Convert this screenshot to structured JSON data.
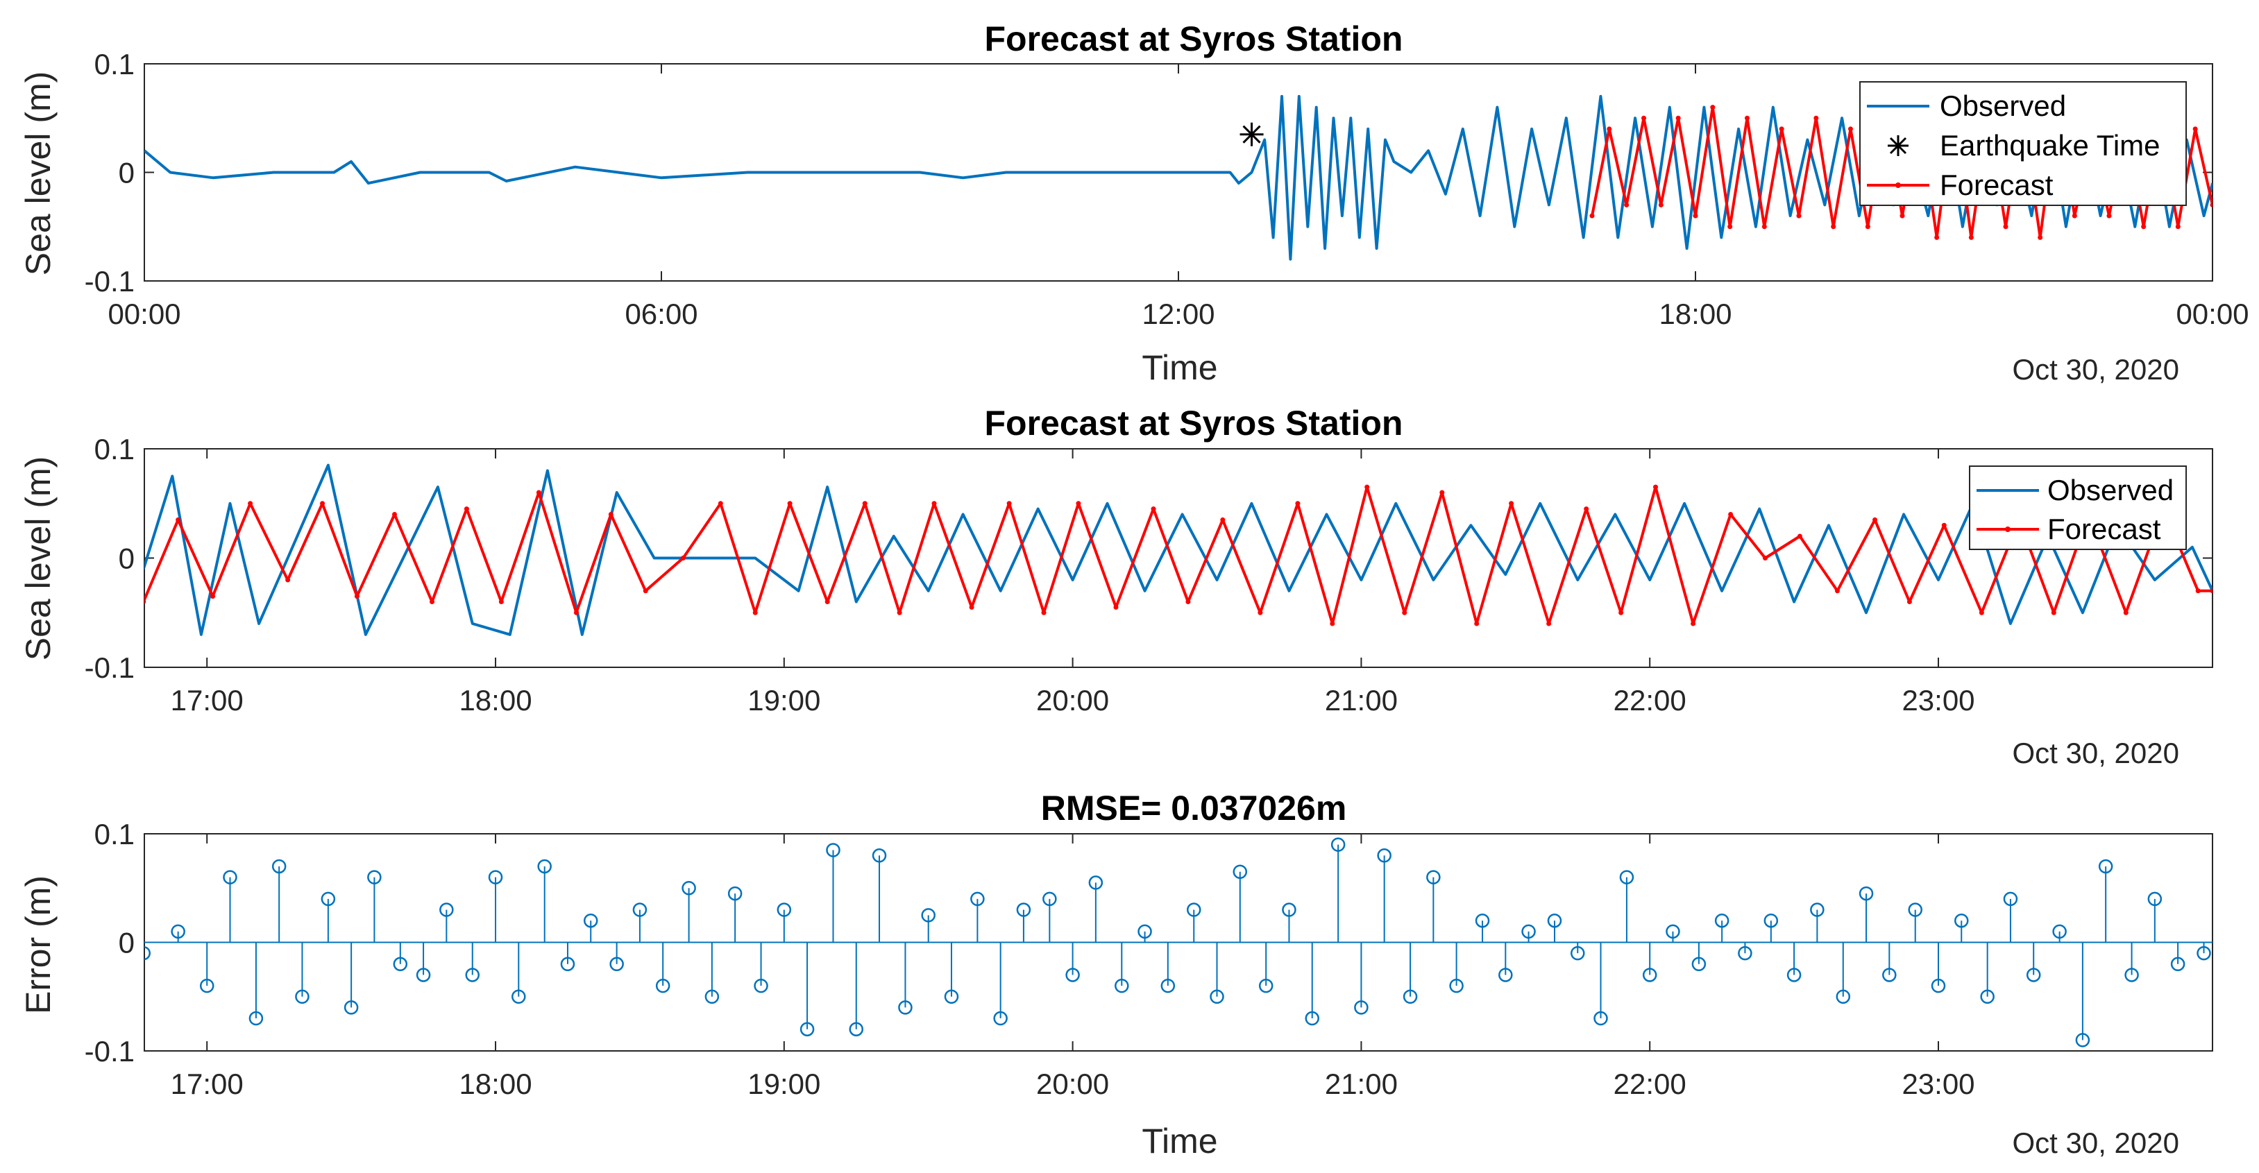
{
  "colors": {
    "observed": "#0072BD",
    "forecast": "#FF0000",
    "marker": "#000000",
    "axis": "#262626"
  },
  "chart_data": [
    {
      "id": "overview",
      "type": "line",
      "title": "Forecast at Syros Station",
      "xlabel": "Time",
      "ylabel": "Sea level (m)",
      "date_label": "Oct 30, 2020",
      "x_unit": "hours since 00:00",
      "xlim": [
        0,
        24
      ],
      "ylim": [
        -0.1,
        0.1
      ],
      "xticks": [
        {
          "value": 0,
          "label": "00:00"
        },
        {
          "value": 6,
          "label": "06:00"
        },
        {
          "value": 12,
          "label": "12:00"
        },
        {
          "value": 18,
          "label": "18:00"
        },
        {
          "value": 24,
          "label": "00:00"
        }
      ],
      "yticks": [
        {
          "value": 0.1,
          "label": "0.1"
        },
        {
          "value": 0,
          "label": "0"
        },
        {
          "value": -0.1,
          "label": "-0.1"
        }
      ],
      "legend": {
        "position": "top-right",
        "entries": [
          "Observed",
          "Earthquake Time",
          "Forecast"
        ]
      },
      "earthquake": {
        "label": "Earthquake Time",
        "x": 12.85,
        "y": 0.035
      },
      "series": [
        {
          "name": "Observed",
          "x": [
            0,
            0.3,
            0.8,
            1.5,
            2.2,
            2.4,
            2.6,
            3.2,
            4,
            4.2,
            5,
            5.5,
            6,
            7,
            8,
            9,
            9.5,
            10,
            11,
            12,
            12.6,
            12.7,
            12.85,
            13.0,
            13.1,
            13.2,
            13.3,
            13.4,
            13.5,
            13.6,
            13.7,
            13.8,
            13.9,
            14.0,
            14.1,
            14.2,
            14.3,
            14.4,
            14.5,
            14.7,
            14.9,
            15.1,
            15.3,
            15.5,
            15.7,
            15.9,
            16.1,
            16.3,
            16.5,
            16.7,
            16.9,
            17.1,
            17.3,
            17.5,
            17.7,
            17.9,
            18.1,
            18.3,
            18.5,
            18.7,
            18.9,
            19.1,
            19.3,
            19.5,
            19.7,
            19.9,
            20.1,
            20.3,
            20.5,
            20.7,
            20.9,
            21.1,
            21.3,
            21.5,
            21.7,
            21.9,
            22.1,
            22.3,
            22.5,
            22.7,
            22.9,
            23.1,
            23.3,
            23.5,
            23.7,
            23.9,
            24
          ],
          "y": [
            0.02,
            0.0,
            -0.005,
            0.0,
            0.0,
            0.01,
            -0.01,
            0.0,
            0.0,
            -0.008,
            0.005,
            0.0,
            -0.005,
            0.0,
            0.0,
            0.0,
            -0.005,
            0.0,
            0.0,
            0.0,
            0.0,
            -0.01,
            0.0,
            0.03,
            -0.06,
            0.07,
            -0.08,
            0.07,
            -0.05,
            0.06,
            -0.07,
            0.05,
            -0.04,
            0.05,
            -0.06,
            0.04,
            -0.07,
            0.03,
            0.01,
            0.0,
            0.02,
            -0.02,
            0.04,
            -0.04,
            0.06,
            -0.05,
            0.04,
            -0.03,
            0.05,
            -0.06,
            0.07,
            -0.06,
            0.05,
            -0.05,
            0.06,
            -0.07,
            0.06,
            -0.06,
            0.04,
            -0.05,
            0.06,
            -0.04,
            0.03,
            -0.03,
            0.05,
            -0.04,
            0.04,
            -0.03,
            0.02,
            -0.04,
            0.05,
            -0.05,
            0.04,
            -0.03,
            0.03,
            -0.04,
            0.05,
            -0.05,
            0.04,
            -0.04,
            0.03,
            -0.05,
            0.04,
            -0.05,
            0.03,
            -0.04,
            -0.01
          ]
        },
        {
          "name": "Forecast",
          "x": [
            16.8,
            17.0,
            17.2,
            17.4,
            17.6,
            17.8,
            18.0,
            18.2,
            18.4,
            18.6,
            18.8,
            19.0,
            19.2,
            19.4,
            19.6,
            19.8,
            20.0,
            20.2,
            20.4,
            20.6,
            20.8,
            21.0,
            21.2,
            21.4,
            21.6,
            21.8,
            22.0,
            22.2,
            22.4,
            22.6,
            22.8,
            23.0,
            23.2,
            23.4,
            23.6,
            23.8,
            24.0
          ],
          "y": [
            -0.04,
            0.04,
            -0.03,
            0.05,
            -0.03,
            0.05,
            -0.04,
            0.06,
            -0.05,
            0.05,
            -0.05,
            0.04,
            -0.04,
            0.05,
            -0.05,
            0.04,
            -0.05,
            0.05,
            -0.04,
            0.05,
            -0.06,
            0.06,
            -0.06,
            0.05,
            -0.05,
            0.05,
            -0.06,
            0.06,
            -0.04,
            0.03,
            -0.04,
            0.04,
            -0.05,
            0.04,
            -0.05,
            0.04,
            -0.03
          ]
        }
      ]
    },
    {
      "id": "zoom",
      "type": "line",
      "title": "Forecast at Syros Station",
      "xlabel": "",
      "ylabel": "Sea level (m)",
      "date_label": "Oct 30, 2020",
      "x_unit": "hours since 00:00",
      "xlim": [
        16.783,
        23.95
      ],
      "ylim": [
        -0.1,
        0.1
      ],
      "xticks": [
        {
          "value": 17,
          "label": "17:00"
        },
        {
          "value": 18,
          "label": "18:00"
        },
        {
          "value": 19,
          "label": "19:00"
        },
        {
          "value": 20,
          "label": "20:00"
        },
        {
          "value": 21,
          "label": "21:00"
        },
        {
          "value": 22,
          "label": "22:00"
        },
        {
          "value": 23,
          "label": "23:00"
        }
      ],
      "yticks": [
        {
          "value": 0.1,
          "label": "0.1"
        },
        {
          "value": 0,
          "label": "0"
        },
        {
          "value": -0.1,
          "label": "-0.1"
        }
      ],
      "legend": {
        "position": "top-right",
        "entries": [
          "Observed",
          "Forecast"
        ]
      },
      "series": [
        {
          "name": "Observed",
          "x": [
            16.78,
            16.88,
            16.98,
            17.08,
            17.18,
            17.28,
            17.42,
            17.55,
            17.68,
            17.8,
            17.92,
            18.05,
            18.18,
            18.3,
            18.42,
            18.55,
            18.68,
            18.8,
            18.9,
            19.05,
            19.15,
            19.25,
            19.38,
            19.5,
            19.62,
            19.75,
            19.88,
            20.0,
            20.12,
            20.25,
            20.38,
            20.5,
            20.62,
            20.75,
            20.88,
            21.0,
            21.12,
            21.25,
            21.38,
            21.5,
            21.62,
            21.75,
            21.88,
            22.0,
            22.12,
            22.25,
            22.38,
            22.5,
            22.62,
            22.75,
            22.88,
            23.0,
            23.12,
            23.25,
            23.38,
            23.5,
            23.62,
            23.75,
            23.88,
            23.95
          ],
          "y": [
            -0.01,
            0.075,
            -0.07,
            0.05,
            -0.06,
            0.0,
            0.085,
            -0.07,
            0.0,
            0.065,
            -0.06,
            -0.07,
            0.08,
            -0.07,
            0.06,
            0.0,
            0.0,
            0.0,
            0.0,
            -0.03,
            0.065,
            -0.04,
            0.02,
            -0.03,
            0.04,
            -0.03,
            0.045,
            -0.02,
            0.05,
            -0.03,
            0.04,
            -0.02,
            0.05,
            -0.03,
            0.04,
            -0.02,
            0.05,
            -0.02,
            0.03,
            -0.015,
            0.05,
            -0.02,
            0.04,
            -0.02,
            0.05,
            -0.03,
            0.045,
            -0.04,
            0.03,
            -0.05,
            0.04,
            -0.02,
            0.05,
            -0.06,
            0.02,
            -0.05,
            0.03,
            -0.02,
            0.01,
            -0.03
          ]
        },
        {
          "name": "Forecast",
          "x": [
            16.78,
            16.9,
            17.02,
            17.15,
            17.28,
            17.4,
            17.52,
            17.65,
            17.78,
            17.9,
            18.02,
            18.15,
            18.28,
            18.4,
            18.52,
            18.65,
            18.78,
            18.9,
            19.02,
            19.15,
            19.28,
            19.4,
            19.52,
            19.65,
            19.78,
            19.9,
            20.02,
            20.15,
            20.28,
            20.4,
            20.52,
            20.65,
            20.78,
            20.9,
            21.02,
            21.15,
            21.28,
            21.4,
            21.52,
            21.65,
            21.78,
            21.9,
            22.02,
            22.15,
            22.28,
            22.4,
            22.52,
            22.65,
            22.78,
            22.9,
            23.02,
            23.15,
            23.28,
            23.4,
            23.52,
            23.65,
            23.78,
            23.9,
            23.95
          ],
          "y": [
            -0.04,
            0.035,
            -0.035,
            0.05,
            -0.02,
            0.05,
            -0.035,
            0.04,
            -0.04,
            0.045,
            -0.04,
            0.06,
            -0.05,
            0.04,
            -0.03,
            0.0,
            0.05,
            -0.05,
            0.05,
            -0.04,
            0.05,
            -0.05,
            0.05,
            -0.045,
            0.05,
            -0.05,
            0.05,
            -0.045,
            0.045,
            -0.04,
            0.035,
            -0.05,
            0.05,
            -0.06,
            0.065,
            -0.05,
            0.06,
            -0.06,
            0.05,
            -0.06,
            0.045,
            -0.05,
            0.065,
            -0.06,
            0.04,
            0.0,
            0.02,
            -0.03,
            0.035,
            -0.04,
            0.03,
            -0.05,
            0.035,
            -0.05,
            0.04,
            -0.05,
            0.045,
            -0.03,
            -0.03
          ]
        }
      ]
    },
    {
      "id": "error",
      "type": "stem",
      "title": "RMSE= 0.037026m",
      "xlabel": "Time",
      "ylabel": "Error (m)",
      "date_label": "Oct 30, 2020",
      "x_unit": "hours since 00:00",
      "xlim": [
        16.783,
        23.95
      ],
      "ylim": [
        -0.1,
        0.1
      ],
      "xticks": [
        {
          "value": 17,
          "label": "17:00"
        },
        {
          "value": 18,
          "label": "18:00"
        },
        {
          "value": 19,
          "label": "19:00"
        },
        {
          "value": 20,
          "label": "20:00"
        },
        {
          "value": 21,
          "label": "21:00"
        },
        {
          "value": 22,
          "label": "22:00"
        },
        {
          "value": 23,
          "label": "23:00"
        }
      ],
      "yticks": [
        {
          "value": 0.1,
          "label": "0.1"
        },
        {
          "value": 0,
          "label": "0"
        },
        {
          "value": -0.1,
          "label": "-0.1"
        }
      ],
      "series": [
        {
          "name": "",
          "x": [
            16.78,
            16.9,
            17.0,
            17.08,
            17.17,
            17.25,
            17.33,
            17.42,
            17.5,
            17.58,
            17.67,
            17.75,
            17.83,
            17.92,
            18.0,
            18.08,
            18.17,
            18.25,
            18.33,
            18.42,
            18.5,
            18.58,
            18.67,
            18.75,
            18.83,
            18.92,
            19.0,
            19.08,
            19.17,
            19.25,
            19.33,
            19.42,
            19.5,
            19.58,
            19.67,
            19.75,
            19.83,
            19.92,
            20.0,
            20.08,
            20.17,
            20.25,
            20.33,
            20.42,
            20.5,
            20.58,
            20.67,
            20.75,
            20.83,
            20.92,
            21.0,
            21.08,
            21.17,
            21.25,
            21.33,
            21.42,
            21.5,
            21.58,
            21.67,
            21.75,
            21.83,
            21.92,
            22.0,
            22.08,
            22.17,
            22.25,
            22.33,
            22.42,
            22.5,
            22.58,
            22.67,
            22.75,
            22.83,
            22.92,
            23.0,
            23.08,
            23.17,
            23.25,
            23.33,
            23.42,
            23.5,
            23.58,
            23.67,
            23.75,
            23.83,
            23.92
          ],
          "y": [
            -0.01,
            0.01,
            -0.04,
            0.06,
            -0.07,
            0.07,
            -0.05,
            0.04,
            -0.06,
            0.06,
            -0.02,
            -0.03,
            0.03,
            -0.03,
            0.06,
            -0.05,
            0.07,
            -0.02,
            0.02,
            -0.02,
            0.03,
            -0.04,
            0.05,
            -0.05,
            0.045,
            -0.04,
            0.03,
            -0.08,
            0.085,
            -0.08,
            0.08,
            -0.06,
            0.025,
            -0.05,
            0.04,
            -0.07,
            0.03,
            0.04,
            -0.03,
            0.055,
            -0.04,
            0.01,
            -0.04,
            0.03,
            -0.05,
            0.065,
            -0.04,
            0.03,
            -0.07,
            0.09,
            -0.06,
            0.08,
            -0.05,
            0.06,
            -0.04,
            0.02,
            -0.03,
            0.01,
            0.02,
            -0.01,
            -0.07,
            0.06,
            -0.03,
            0.01,
            -0.02,
            0.02,
            -0.01,
            0.02,
            -0.03,
            0.03,
            -0.05,
            0.045,
            -0.03,
            0.03,
            -0.04,
            0.02,
            -0.05,
            0.04,
            -0.03,
            0.01,
            -0.09,
            0.07,
            -0.03,
            0.04,
            -0.02,
            -0.01
          ]
        }
      ]
    }
  ]
}
